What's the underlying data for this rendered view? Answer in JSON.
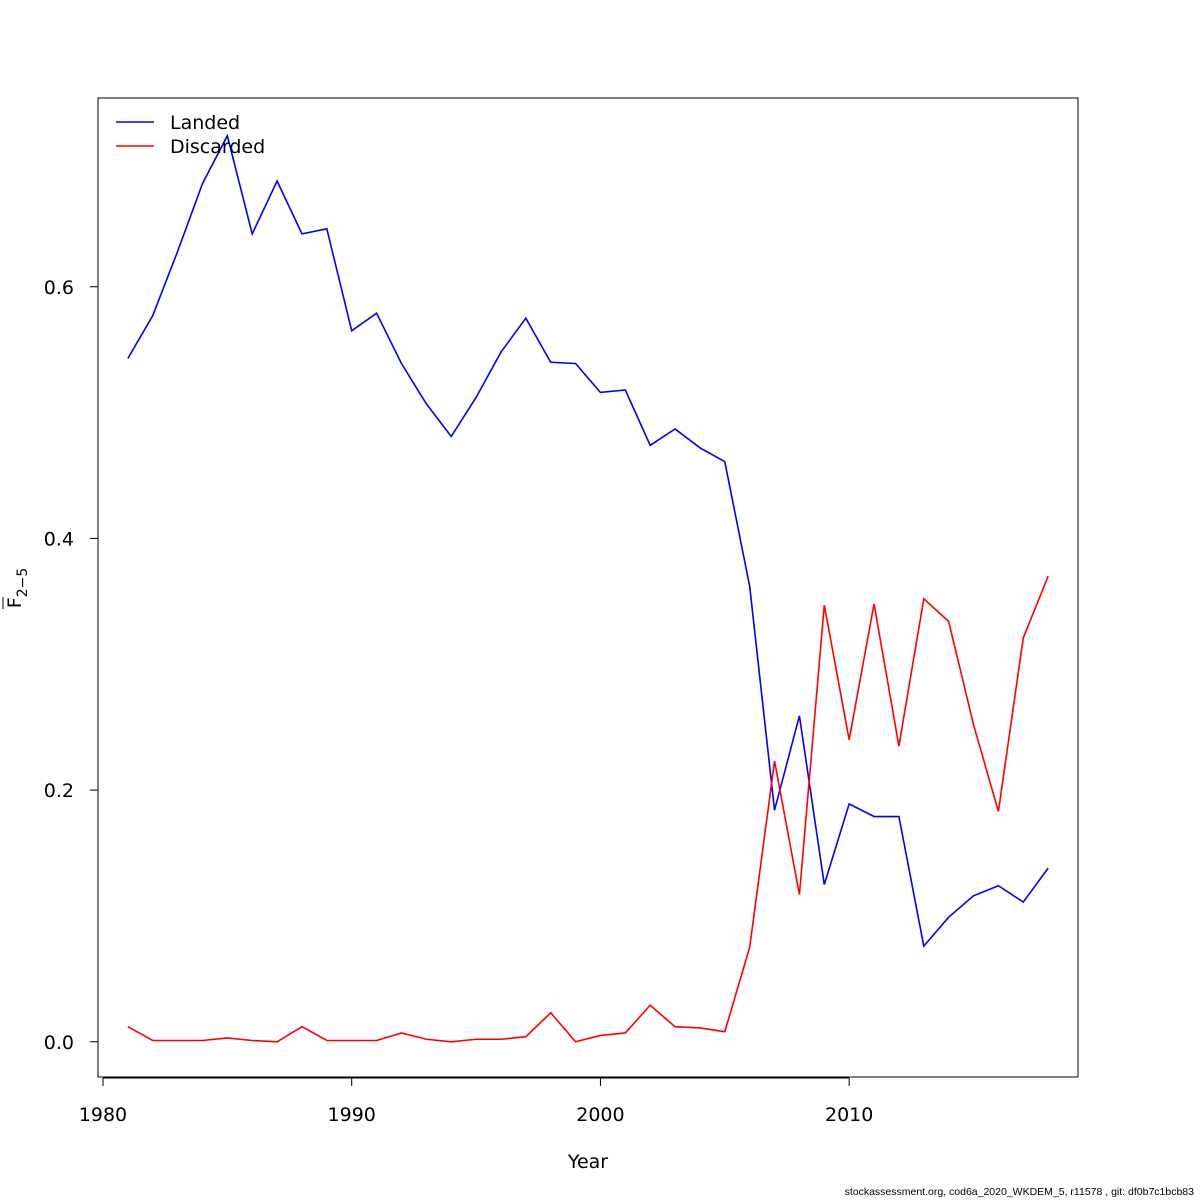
{
  "chart_data": {
    "type": "line",
    "xlabel": "Year",
    "ylabel_main": "F",
    "ylabel_sub": "2−5",
    "xlim": [
      1979.8,
      2019.2
    ],
    "ylim": [
      -0.028,
      0.75
    ],
    "xticks": [
      1980,
      1990,
      2000,
      2010
    ],
    "xtick_labels": [
      "1980",
      "1990",
      "2000",
      "2010"
    ],
    "yticks": [
      0.0,
      0.2,
      0.4,
      0.6
    ],
    "ytick_labels": [
      "0.0",
      "0.2",
      "0.4",
      "0.6"
    ],
    "legend_position": "top-left",
    "x": [
      1981,
      1982,
      1983,
      1984,
      1985,
      1986,
      1987,
      1988,
      1989,
      1990,
      1991,
      1992,
      1993,
      1994,
      1995,
      1996,
      1997,
      1998,
      1999,
      2000,
      2001,
      2002,
      2003,
      2004,
      2005,
      2006,
      2007,
      2008,
      2009,
      2010,
      2011,
      2012,
      2013,
      2014,
      2015,
      2016,
      2017,
      2018
    ],
    "series": [
      {
        "name": "Landed",
        "color": "#0000ff",
        "values": [
          0.543,
          0.577,
          0.628,
          0.682,
          0.72,
          0.642,
          0.684,
          0.642,
          0.646,
          0.565,
          0.579,
          0.539,
          0.507,
          0.481,
          0.512,
          0.548,
          0.575,
          0.54,
          0.539,
          0.516,
          0.518,
          0.474,
          0.487,
          0.472,
          0.461,
          0.362,
          0.184,
          0.259,
          0.125,
          0.189,
          0.179,
          0.179,
          0.076,
          0.099,
          0.116,
          0.124,
          0.111,
          0.138
        ]
      },
      {
        "name": "Discarded",
        "color": "#ff0000",
        "values": [
          0.012,
          0.001,
          0.001,
          0.001,
          0.003,
          0.001,
          0.0,
          0.012,
          0.001,
          0.001,
          0.001,
          0.007,
          0.002,
          0.0,
          0.002,
          0.002,
          0.004,
          0.023,
          0.0,
          0.005,
          0.007,
          0.029,
          0.012,
          0.011,
          0.008,
          0.075,
          0.223,
          0.117,
          0.347,
          0.24,
          0.348,
          0.235,
          0.352,
          0.334,
          0.252,
          0.183,
          0.321,
          0.37
        ]
      }
    ]
  },
  "footer": "stockassessment.org, cod6a_2020_WKDEM_5, r11578 , git: df0b7c1bcb83"
}
